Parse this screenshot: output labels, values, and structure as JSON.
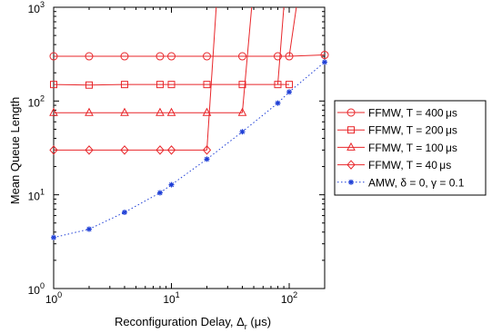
{
  "chart_data": {
    "type": "line",
    "xlabel": "Reconfiguration Delay, Δ",
    "xlabel_sub": "r",
    "xlabel_unit": " (μs)",
    "ylabel": "Mean Queue Length",
    "x_scale": "log",
    "y_scale": "log",
    "xlim": [
      1,
      200
    ],
    "ylim": [
      1,
      1000
    ],
    "x_ticks": [
      {
        "value": 1,
        "base": "10",
        "exp": "0"
      },
      {
        "value": 10,
        "base": "10",
        "exp": "1"
      },
      {
        "value": 100,
        "base": "10",
        "exp": "2"
      }
    ],
    "y_ticks": [
      {
        "value": 1,
        "base": "10",
        "exp": "0"
      },
      {
        "value": 10,
        "base": "10",
        "exp": "1"
      },
      {
        "value": 100,
        "base": "10",
        "exp": "2"
      },
      {
        "value": 1000,
        "base": "10",
        "exp": "3"
      }
    ],
    "grid": false,
    "legend_position": "outside-right",
    "series": [
      {
        "name": "FFMW, T = 400 μs",
        "color": "#e8262a",
        "marker": "circle",
        "line": "solid",
        "x": [
          1,
          2,
          4,
          8,
          10,
          20,
          40,
          80,
          100,
          200
        ],
        "y": [
          300,
          300,
          300,
          300,
          300,
          300,
          300,
          300,
          300,
          310
        ],
        "steep": {
          "x": [
            100,
            115
          ],
          "y": [
            300,
            1000
          ]
        }
      },
      {
        "name": "FFMW, T = 200 μs",
        "color": "#e8262a",
        "marker": "square",
        "line": "solid",
        "x": [
          1,
          2,
          4,
          8,
          10,
          20,
          40,
          80,
          100
        ],
        "y": [
          150,
          148,
          150,
          150,
          150,
          150,
          150,
          150,
          150
        ],
        "steep": {
          "x": [
            80,
            90
          ],
          "y": [
            150,
            1000
          ]
        }
      },
      {
        "name": "FFMW, T = 100 μs",
        "color": "#e8262a",
        "marker": "triangle",
        "line": "solid",
        "x": [
          1,
          2,
          4,
          8,
          10,
          20,
          40
        ],
        "y": [
          75,
          75,
          75,
          75,
          75,
          75,
          75
        ],
        "steep": {
          "x": [
            40,
            48
          ],
          "y": [
            75,
            1000
          ]
        }
      },
      {
        "name": "FFMW, T = 40 μs",
        "color": "#e8262a",
        "marker": "diamond",
        "line": "solid",
        "x": [
          1,
          2,
          4,
          8,
          10,
          20
        ],
        "y": [
          30,
          30,
          30,
          30,
          30,
          30
        ],
        "steep": {
          "x": [
            20,
            24
          ],
          "y": [
            30,
            1000
          ]
        }
      },
      {
        "name": "AMW, δ = 0, γ = 0.1",
        "color": "#1f3fd6",
        "marker": "star",
        "line": "dotted",
        "x": [
          1,
          2,
          4,
          8,
          10,
          20,
          40,
          80,
          100,
          200
        ],
        "y": [
          3.5,
          4.3,
          6.5,
          10.5,
          12.8,
          24,
          47,
          95,
          125,
          260
        ]
      }
    ]
  }
}
